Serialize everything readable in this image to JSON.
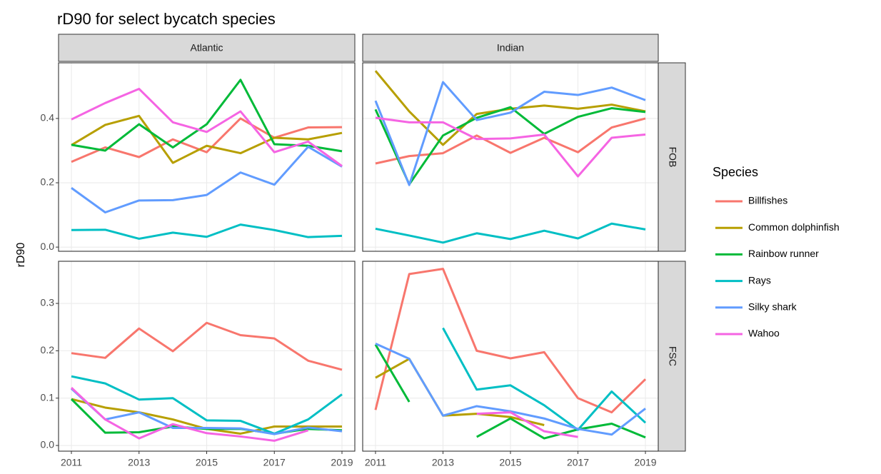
{
  "chart_data": {
    "type": "line",
    "title": "rD90 for select bycatch species",
    "ylabel": "rD90",
    "legend_title": "Species",
    "grid": true,
    "x": [
      2011,
      2012,
      2013,
      2014,
      2015,
      2016,
      2017,
      2018,
      2019
    ],
    "xlim": [
      2010.62,
      2019.38
    ],
    "xticks": [
      2011,
      2013,
      2015,
      2017,
      2019
    ],
    "series": [
      {
        "name": "Billfishes",
        "color": "#F8766D"
      },
      {
        "name": "Common dolphinfish",
        "color": "#B79F00"
      },
      {
        "name": "Rainbow runner",
        "color": "#00BA38"
      },
      {
        "name": "Rays",
        "color": "#00BFC4"
      },
      {
        "name": "Silky shark",
        "color": "#619CFF"
      },
      {
        "name": "Wahoo",
        "color": "#F564E3"
      }
    ],
    "columns": [
      "Atlantic",
      "Indian"
    ],
    "rows": [
      {
        "label": "FOB",
        "ylim": [
          -0.013,
          0.573
        ],
        "yticks": [
          {
            "value": 0,
            "label": "0.0"
          },
          0.2,
          0.4
        ],
        "values": [
          [
            [
              0.265,
              0.31,
              0.28,
              0.335,
              0.295,
              0.4,
              0.34,
              0.372,
              0.373
            ],
            [
              0.317,
              0.38,
              0.408,
              0.262,
              0.315,
              0.292,
              0.34,
              0.335,
              0.355
            ],
            [
              0.318,
              0.3,
              0.382,
              0.31,
              0.382,
              0.52,
              0.32,
              0.315,
              0.298
            ],
            [
              0.053,
              0.054,
              0.026,
              0.045,
              0.032,
              0.07,
              0.053,
              0.031,
              0.035
            ],
            [
              0.184,
              0.108,
              0.145,
              0.146,
              0.162,
              0.232,
              0.194,
              0.312,
              0.25
            ],
            [
              0.397,
              0.448,
              0.492,
              0.388,
              0.358,
              0.422,
              0.295,
              0.328,
              0.252
            ]
          ],
          [
            [
              0.26,
              0.283,
              0.292,
              0.347,
              0.293,
              0.34,
              0.295,
              0.372,
              0.4
            ],
            [
              0.548,
              0.422,
              0.318,
              0.414,
              0.43,
              0.44,
              0.43,
              0.443,
              0.422
            ],
            [
              0.428,
              0.195,
              0.347,
              0.402,
              0.435,
              0.352,
              0.405,
              0.432,
              0.42
            ],
            [
              0.057,
              0.036,
              0.014,
              0.043,
              0.025,
              0.051,
              0.027,
              0.073,
              0.055
            ],
            [
              0.455,
              0.193,
              0.513,
              0.395,
              0.418,
              0.483,
              0.473,
              0.496,
              0.457
            ],
            [
              0.402,
              0.388,
              0.388,
              0.336,
              0.338,
              0.35,
              0.22,
              0.34,
              0.35
            ]
          ]
        ]
      },
      {
        "label": "FSC",
        "ylim": [
          -0.012,
          0.389
        ],
        "yticks": [
          {
            "value": 0,
            "label": "0.0"
          },
          0.1,
          0.2,
          0.3
        ],
        "values": [
          [
            [
              0.195,
              0.185,
              0.247,
              0.199,
              0.259,
              0.233,
              0.226,
              0.179,
              0.16
            ],
            [
              0.098,
              0.08,
              0.07,
              0.055,
              0.035,
              0.025,
              0.04,
              0.04,
              0.04
            ],
            [
              0.098,
              0.027,
              0.028,
              0.04,
              0.035,
              0.035,
              0.025,
              0.035,
              0.032
            ],
            [
              0.146,
              0.131,
              0.097,
              0.1,
              0.053,
              0.052,
              0.025,
              0.055,
              0.108
            ],
            [
              0.12,
              0.055,
              0.07,
              0.037,
              0.037,
              0.036,
              0.024,
              0.038,
              0.03
            ],
            [
              0.122,
              0.055,
              0.015,
              0.045,
              0.026,
              0.019,
              0.01,
              0.032,
              null
            ]
          ],
          [
            [
              0.075,
              0.362,
              0.373,
              0.2,
              0.184,
              0.197,
              0.1,
              0.07,
              0.14
            ],
            [
              0.143,
              0.183,
              0.063,
              0.067,
              0.06,
              0.043,
              null,
              null,
              null
            ],
            [
              0.213,
              0.092,
              null,
              0.018,
              0.057,
              0.015,
              0.034,
              0.046,
              0.017
            ],
            [
              null,
              null,
              0.248,
              0.118,
              0.127,
              0.085,
              0.033,
              0.114,
              0.048
            ],
            [
              0.215,
              0.183,
              0.063,
              0.083,
              0.072,
              0.057,
              0.035,
              0.023,
              0.078
            ],
            [
              null,
              null,
              null,
              0.067,
              0.07,
              0.03,
              0.018,
              null,
              null
            ]
          ]
        ]
      }
    ]
  }
}
